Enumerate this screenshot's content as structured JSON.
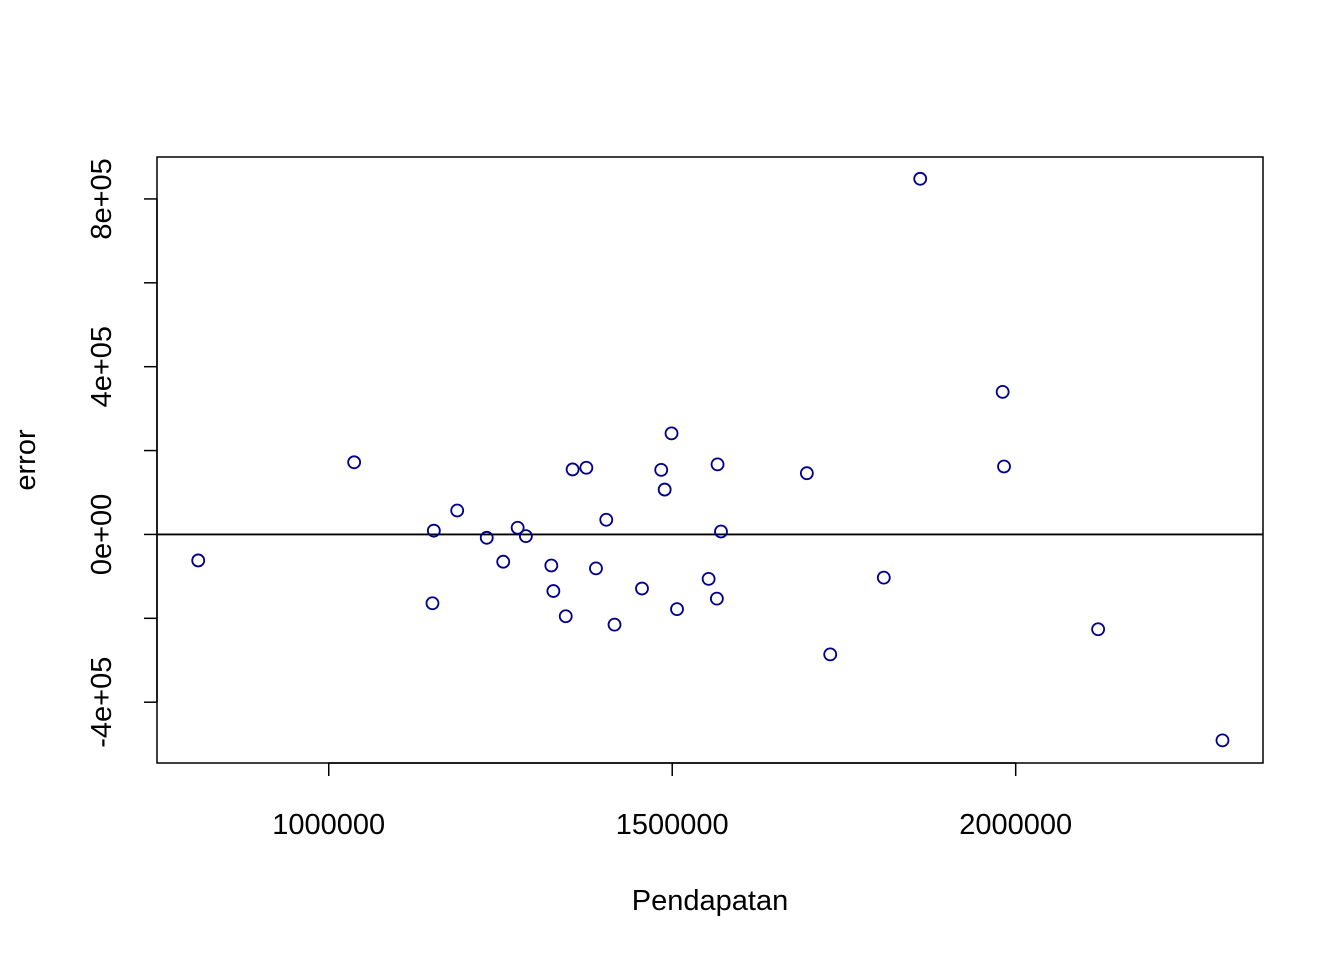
{
  "chart_data": {
    "type": "scatter",
    "title": "",
    "xlabel": "Pendapatan",
    "ylabel": "error",
    "xlim": [
      750000,
      2360000
    ],
    "ylim": [
      -545000,
      900000
    ],
    "x_ticks": [
      {
        "value": 1000000,
        "label": "1000000"
      },
      {
        "value": 1500000,
        "label": "1500000"
      },
      {
        "value": 2000000,
        "label": "2000000"
      }
    ],
    "y_ticks": [
      {
        "value": -400000,
        "label": "-4e+05"
      },
      {
        "value": -200000,
        "label": ""
      },
      {
        "value": 0,
        "label": "0e+00"
      },
      {
        "value": 200000,
        "label": ""
      },
      {
        "value": 400000,
        "label": "4e+05"
      },
      {
        "value": 600000,
        "label": ""
      },
      {
        "value": 800000,
        "label": "8e+05"
      }
    ],
    "hline": 0,
    "grid": false,
    "colors": {
      "points": "#00008B",
      "axes": "#000000"
    },
    "points": [
      {
        "x": 810000,
        "y": -62000
      },
      {
        "x": 1037000,
        "y": 172000
      },
      {
        "x": 1151000,
        "y": -164000
      },
      {
        "x": 1153000,
        "y": 9000
      },
      {
        "x": 1187000,
        "y": 57000
      },
      {
        "x": 1230000,
        "y": -8000
      },
      {
        "x": 1254000,
        "y": -65000
      },
      {
        "x": 1275000,
        "y": 16000
      },
      {
        "x": 1287000,
        "y": -4000
      },
      {
        "x": 1324000,
        "y": -74000
      },
      {
        "x": 1327000,
        "y": -135000
      },
      {
        "x": 1345000,
        "y": -195000
      },
      {
        "x": 1355000,
        "y": 155000
      },
      {
        "x": 1375000,
        "y": 159000
      },
      {
        "x": 1389000,
        "y": -81000
      },
      {
        "x": 1404000,
        "y": 35000
      },
      {
        "x": 1416000,
        "y": -215000
      },
      {
        "x": 1456000,
        "y": -129000
      },
      {
        "x": 1484000,
        "y": 154000
      },
      {
        "x": 1489000,
        "y": 107000
      },
      {
        "x": 1499000,
        "y": 241000
      },
      {
        "x": 1507000,
        "y": -178000
      },
      {
        "x": 1553000,
        "y": -106000
      },
      {
        "x": 1565000,
        "y": -153000
      },
      {
        "x": 1566000,
        "y": 167000
      },
      {
        "x": 1571000,
        "y": 7000
      },
      {
        "x": 1696000,
        "y": 146000
      },
      {
        "x": 1730000,
        "y": -286000
      },
      {
        "x": 1808000,
        "y": -103000
      },
      {
        "x": 1861000,
        "y": 848000
      },
      {
        "x": 1981000,
        "y": 340000
      },
      {
        "x": 1983000,
        "y": 162000
      },
      {
        "x": 2120000,
        "y": -226000
      },
      {
        "x": 2301000,
        "y": -491000
      }
    ]
  }
}
